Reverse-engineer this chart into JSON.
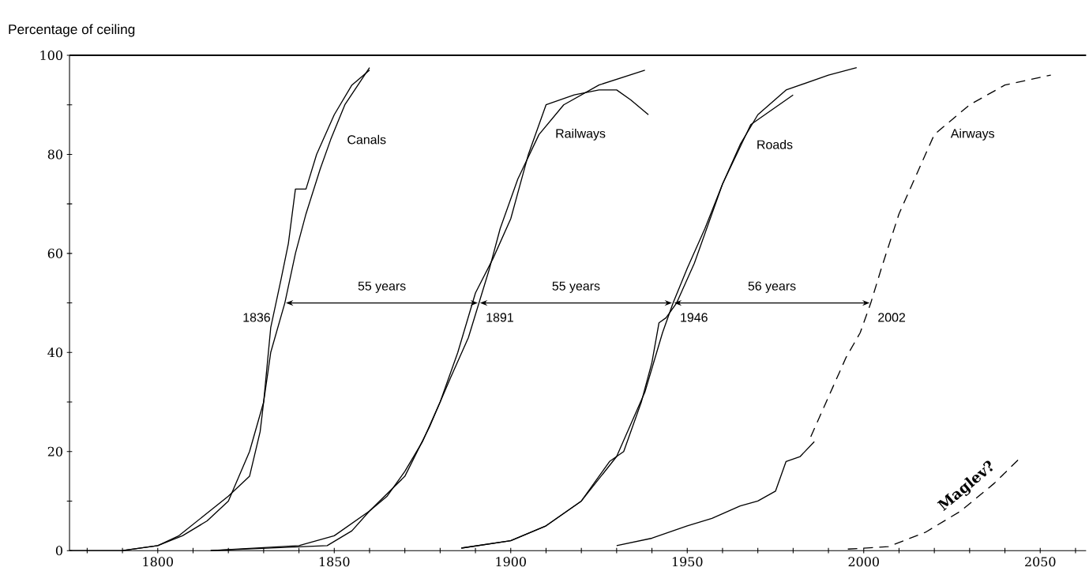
{
  "chart_data": {
    "type": "line",
    "ylabel": "Percentage of ceiling",
    "xlim": [
      1775,
      2063
    ],
    "ylim": [
      0,
      100
    ],
    "xticks": [
      {
        "value": 1780,
        "label": null
      },
      {
        "value": 1790,
        "label": null
      },
      1800,
      {
        "value": 1810,
        "label": null
      },
      {
        "value": 1820,
        "label": null
      },
      {
        "value": 1830,
        "label": null
      },
      {
        "value": 1840,
        "label": null
      },
      1850,
      {
        "value": 1860,
        "label": null
      },
      {
        "value": 1870,
        "label": null
      },
      {
        "value": 1880,
        "label": null
      },
      {
        "value": 1890,
        "label": null
      },
      1900,
      {
        "value": 1910,
        "label": null
      },
      {
        "value": 1920,
        "label": null
      },
      {
        "value": 1930,
        "label": null
      },
      {
        "value": 1940,
        "label": null
      },
      1950,
      {
        "value": 1960,
        "label": null
      },
      {
        "value": 1970,
        "label": null
      },
      {
        "value": 1980,
        "label": null
      },
      {
        "value": 1990,
        "label": null
      },
      2000,
      {
        "value": 2010,
        "label": null
      },
      {
        "value": 2020,
        "label": null
      },
      {
        "value": 2030,
        "label": null
      },
      {
        "value": 2040,
        "label": null
      },
      2050,
      {
        "value": 2060,
        "label": null
      }
    ],
    "yticks": [
      0,
      {
        "value": 10,
        "label": null
      },
      20,
      {
        "value": 30,
        "label": null
      },
      40,
      {
        "value": 50,
        "label": null
      },
      60,
      {
        "value": 70,
        "label": null
      },
      80,
      {
        "value": 90,
        "label": null
      },
      100
    ],
    "series": [
      {
        "name": "Canals",
        "color": "#000000",
        "x": [
          1790,
          1800,
          1807,
          1814,
          1820,
          1826,
          1830,
          1832,
          1836,
          1839,
          1842,
          1846,
          1849,
          1853,
          1860
        ],
        "values": [
          0,
          1,
          3,
          6,
          10,
          20,
          30,
          40,
          50,
          60,
          68,
          77,
          83,
          90,
          97.5
        ]
      },
      {
        "color": "#000000",
        "x": [
          1775,
          1790,
          1800,
          1806,
          1813,
          1820,
          1826,
          1829,
          1830,
          1832,
          1835,
          1837,
          1839,
          1842,
          1845,
          1850,
          1855,
          1860
        ],
        "values": [
          0,
          0,
          1,
          3,
          7,
          11,
          15,
          24,
          30,
          45,
          55,
          62,
          73,
          73,
          80,
          88,
          94,
          97
        ]
      },
      {
        "name": "Railways",
        "color": "#000000",
        "x": [
          1815,
          1840,
          1850,
          1860,
          1870,
          1877,
          1883,
          1888,
          1891,
          1894,
          1897,
          1902,
          1908,
          1915,
          1925,
          1938
        ],
        "values": [
          0,
          1,
          3,
          8,
          15,
          25,
          35,
          43,
          50,
          57,
          65,
          75,
          84,
          90,
          94,
          97
        ]
      },
      {
        "color": "#000000",
        "x": [
          1815,
          1848,
          1855,
          1860,
          1865,
          1870,
          1875,
          1880,
          1885,
          1890,
          1895,
          1900,
          1905,
          1910,
          1918,
          1925,
          1930,
          1934,
          1939
        ],
        "values": [
          0,
          1,
          4,
          8,
          11,
          16,
          22,
          30,
          40,
          52,
          59,
          67,
          80,
          90,
          92,
          93,
          93,
          91,
          88
        ]
      },
      {
        "name": "Roads",
        "color": "#000000",
        "x": [
          1886,
          1900,
          1910,
          1920,
          1930,
          1938,
          1943,
          1946,
          1950,
          1955,
          1960,
          1965,
          1970,
          1978,
          1990,
          1998
        ],
        "values": [
          0.5,
          2,
          5,
          10,
          19,
          32,
          44,
          50,
          57,
          65,
          74,
          82,
          88,
          93,
          96,
          97.5
        ]
      },
      {
        "color": "#000000",
        "x": [
          1886,
          1900,
          1910,
          1920,
          1928,
          1932,
          1937,
          1940,
          1942,
          1944,
          1947,
          1952,
          1960,
          1968,
          1980
        ],
        "values": [
          0.5,
          2,
          5,
          10,
          18,
          20,
          30,
          38,
          46,
          47,
          50,
          58,
          74,
          86,
          92
        ]
      },
      {
        "name": "Airways",
        "color": "#000000",
        "line_style": "dashed",
        "x": [
          1985,
          1990,
          1995,
          1999,
          2002,
          2005,
          2010,
          2015,
          2020,
          2030,
          2040,
          2053
        ],
        "values": [
          23,
          31,
          39,
          44,
          50,
          57,
          68,
          76,
          84,
          90,
          94,
          96
        ]
      },
      {
        "color": "#000000",
        "x": [
          1930,
          1940,
          1950,
          1957,
          1965,
          1970,
          1975,
          1978,
          1982,
          1986
        ],
        "values": [
          1,
          2.5,
          5,
          6.5,
          9,
          10,
          12,
          18,
          19,
          22
        ]
      },
      {
        "name": "Maglev?",
        "color": "#000000",
        "line_style": "dashed",
        "x": [
          1995.5,
          2007,
          2017.5,
          2027.5,
          2037,
          2044
        ],
        "values": [
          0.3,
          0.8,
          3.7,
          8,
          13.6,
          18.5
        ]
      }
    ],
    "annotations": [
      {
        "text": "1836",
        "x": 1836,
        "y": 50
      },
      {
        "text": "1891",
        "x": 1891,
        "y": 50
      },
      {
        "text": "1946",
        "x": 1946,
        "y": 50
      },
      {
        "text": "2002",
        "x": 2002,
        "y": 50
      },
      "55 years",
      "55 years",
      "56 years"
    ]
  }
}
